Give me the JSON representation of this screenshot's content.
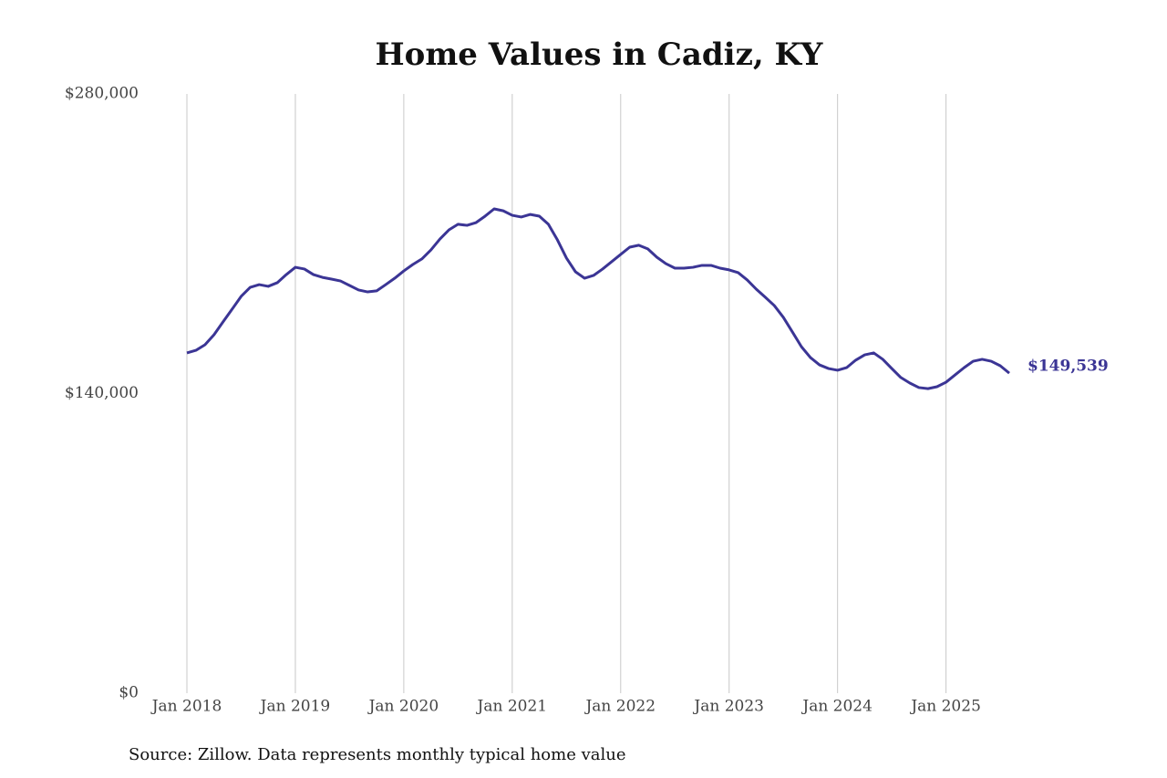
{
  "chart_data": {
    "type": "line",
    "title": "Home Values in Cadiz, KY",
    "source": "Source: Zillow. Data represents monthly typical home value",
    "x": [
      "2018-01",
      "2018-02",
      "2018-03",
      "2018-04",
      "2018-05",
      "2018-06",
      "2018-07",
      "2018-08",
      "2018-09",
      "2018-10",
      "2018-11",
      "2018-12",
      "2019-01",
      "2019-02",
      "2019-03",
      "2019-04",
      "2019-05",
      "2019-06",
      "2019-07",
      "2019-08",
      "2019-09",
      "2019-10",
      "2019-11",
      "2019-12",
      "2020-01",
      "2020-02",
      "2020-03",
      "2020-04",
      "2020-05",
      "2020-06",
      "2020-07",
      "2020-08",
      "2020-09",
      "2020-10",
      "2020-11",
      "2020-12",
      "2021-01",
      "2021-02",
      "2021-03",
      "2021-04",
      "2021-05",
      "2021-06",
      "2021-07",
      "2021-08",
      "2021-09",
      "2021-10",
      "2021-11",
      "2021-12",
      "2022-01",
      "2022-02",
      "2022-03",
      "2022-04",
      "2022-05",
      "2022-06",
      "2022-07",
      "2022-08",
      "2022-09",
      "2022-10",
      "2022-11",
      "2022-12",
      "2023-01",
      "2023-02",
      "2023-03",
      "2023-04",
      "2023-05",
      "2023-06",
      "2023-07",
      "2023-08",
      "2023-09",
      "2023-10",
      "2023-11",
      "2023-12",
      "2024-01",
      "2024-02",
      "2024-03",
      "2024-04",
      "2024-05",
      "2024-06",
      "2024-07",
      "2024-08",
      "2024-09",
      "2024-10",
      "2024-11",
      "2024-12",
      "2025-01",
      "2025-02",
      "2025-03",
      "2025-04",
      "2025-05",
      "2025-06",
      "2025-07",
      "2025-08"
    ],
    "values": [
      159000,
      160200,
      162800,
      167500,
      173500,
      179400,
      185400,
      189600,
      190900,
      190100,
      191800,
      195600,
      199000,
      198200,
      195600,
      194300,
      193500,
      192600,
      190500,
      188400,
      187500,
      188000,
      190900,
      193900,
      197300,
      200300,
      202900,
      207100,
      212200,
      216500,
      219100,
      218600,
      219900,
      222900,
      226300,
      225400,
      223300,
      222500,
      223700,
      222900,
      219100,
      211800,
      203300,
      196900,
      193900,
      195200,
      198200,
      201600,
      205000,
      208400,
      209300,
      207600,
      203700,
      200700,
      198600,
      198600,
      199000,
      199900,
      199900,
      198600,
      197800,
      196500,
      193100,
      188800,
      185000,
      181100,
      175600,
      168800,
      161900,
      156800,
      153400,
      151700,
      150900,
      152100,
      155600,
      158100,
      159000,
      156000,
      151700,
      147500,
      144900,
      142800,
      142300,
      143200,
      145300,
      148700,
      152100,
      155100,
      156000,
      155100,
      153000,
      149539
    ],
    "end_label": "$149,539",
    "color": "#3b3595",
    "xlim": [
      "2018-01",
      "2025-08"
    ],
    "xticks": [
      {
        "value": "2018-01",
        "label": "Jan 2018"
      },
      {
        "value": "2019-01",
        "label": "Jan 2019"
      },
      {
        "value": "2020-01",
        "label": "Jan 2020"
      },
      {
        "value": "2021-01",
        "label": "Jan 2021"
      },
      {
        "value": "2022-01",
        "label": "Jan 2022"
      },
      {
        "value": "2023-01",
        "label": "Jan 2023"
      },
      {
        "value": "2024-01",
        "label": "Jan 2024"
      },
      {
        "value": "2025-01",
        "label": "Jan 2025"
      }
    ],
    "ylim": [
      0,
      280000
    ],
    "yticks": [
      {
        "value": 0,
        "label": "$0"
      },
      {
        "value": 140000,
        "label": "$140,000"
      },
      {
        "value": 280000,
        "label": "$280,000"
      }
    ],
    "grid": "x"
  }
}
